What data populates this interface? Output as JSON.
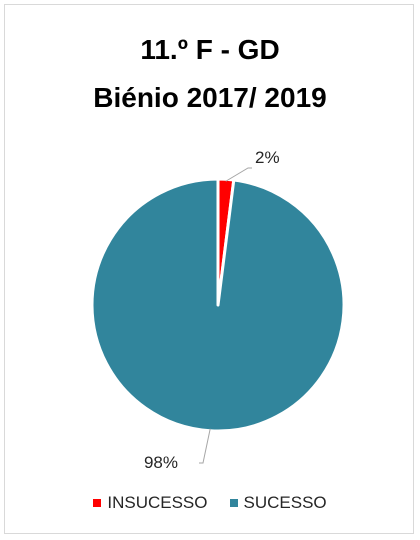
{
  "chart_data": {
    "type": "pie",
    "title_lines": [
      "11.º F - GD",
      "Biénio 2017/ 2019"
    ],
    "slices": [
      {
        "name": "INSUCESSO",
        "value": 2,
        "label": "2%",
        "color": "#ff0000"
      },
      {
        "name": "SUCESSO",
        "value": 98,
        "label": "98%",
        "color": "#31859c"
      }
    ],
    "legend_position": "bottom",
    "start_angle_deg": 0,
    "direction": "clockwise"
  }
}
